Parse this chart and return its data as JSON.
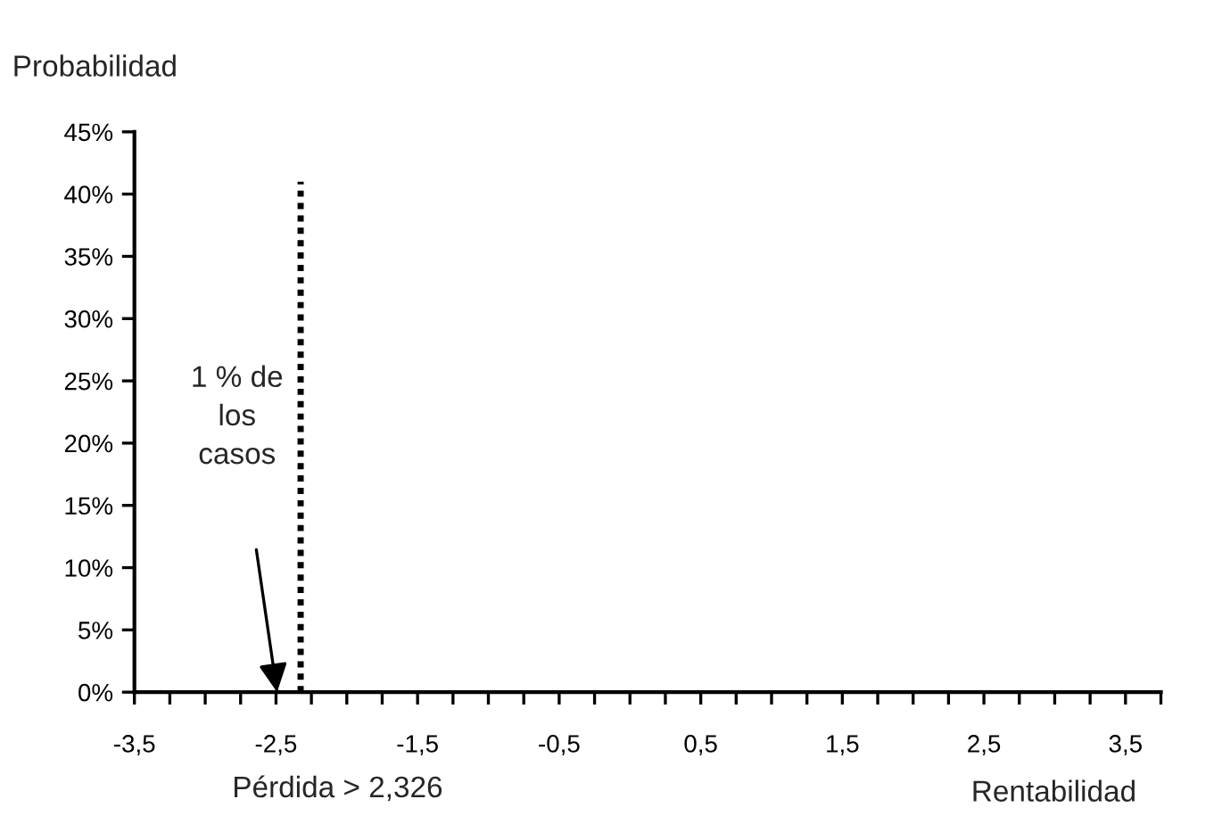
{
  "chart_data": {
    "type": "line",
    "ylabel": "Probabilidad",
    "xlabel": "Rentabilidad",
    "series": [
      {
        "color": "#000000",
        "line_style": "dotted",
        "x": [
          -2.326,
          -2.326
        ],
        "values": [
          0,
          41
        ]
      }
    ],
    "xlim": [
      -3.5,
      3.75
    ],
    "xticks": [
      {
        "value": -3.5,
        "label": "-3,5"
      },
      {
        "value": -3.25,
        "label": null
      },
      {
        "value": -3.0,
        "label": null
      },
      {
        "value": -2.75,
        "label": null
      },
      {
        "value": -2.5,
        "label": "-2,5"
      },
      {
        "value": -2.25,
        "label": null
      },
      {
        "value": -2.0,
        "label": null
      },
      {
        "value": -1.75,
        "label": null
      },
      {
        "value": -1.5,
        "label": "-1,5"
      },
      {
        "value": -1.25,
        "label": null
      },
      {
        "value": -1.0,
        "label": null
      },
      {
        "value": -0.75,
        "label": null
      },
      {
        "value": -0.5,
        "label": "-0,5"
      },
      {
        "value": -0.25,
        "label": null
      },
      {
        "value": 0.0,
        "label": null
      },
      {
        "value": 0.25,
        "label": null
      },
      {
        "value": 0.5,
        "label": "0,5"
      },
      {
        "value": 0.75,
        "label": null
      },
      {
        "value": 1.0,
        "label": null
      },
      {
        "value": 1.25,
        "label": null
      },
      {
        "value": 1.5,
        "label": "1,5"
      },
      {
        "value": 1.75,
        "label": null
      },
      {
        "value": 2.0,
        "label": null
      },
      {
        "value": 2.25,
        "label": null
      },
      {
        "value": 2.5,
        "label": "2,5"
      },
      {
        "value": 2.75,
        "label": null
      },
      {
        "value": 3.0,
        "label": null
      },
      {
        "value": 3.25,
        "label": null
      },
      {
        "value": 3.5,
        "label": "3,5"
      },
      {
        "value": 3.75,
        "label": null
      }
    ],
    "ylim": [
      0,
      45
    ],
    "yticks": [
      {
        "value": 0,
        "label": "0%"
      },
      {
        "value": 5,
        "label": "5%"
      },
      {
        "value": 10,
        "label": "10%"
      },
      {
        "value": 15,
        "label": "15%"
      },
      {
        "value": 20,
        "label": "20%"
      },
      {
        "value": 25,
        "label": "25%"
      },
      {
        "value": 30,
        "label": "30%"
      },
      {
        "value": 35,
        "label": "35%"
      },
      {
        "value": 40,
        "label": "40%"
      },
      {
        "value": 45,
        "label": "45%"
      }
    ],
    "annotations": [
      "1 % de\nlos\ncasos",
      "Pérdida > 2,326"
    ],
    "grid": false,
    "legend": false
  }
}
